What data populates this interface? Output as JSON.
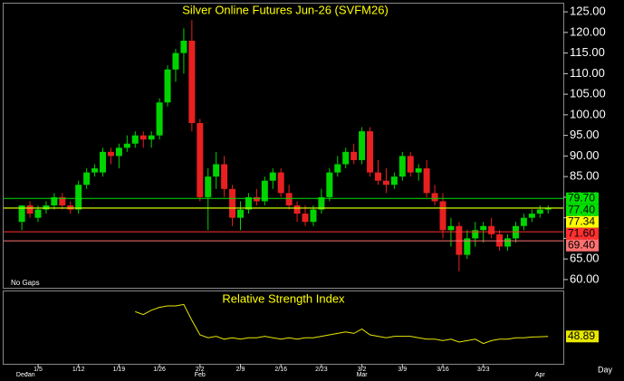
{
  "chart_data": [
    {
      "type": "candlestick",
      "title": "Silver Online Futures Jun-26 (SVFM26)",
      "note": "No Gaps",
      "categories": [
        null,
        null,
        "1/5",
        null,
        null,
        null,
        null,
        "1/12",
        null,
        null,
        null,
        null,
        "1/19",
        null,
        null,
        null,
        null,
        "1/26",
        null,
        null,
        null,
        null,
        "2/2",
        null,
        null,
        null,
        null,
        "2/9",
        null,
        null,
        null,
        null,
        "2/16",
        null,
        null,
        null,
        null,
        "2/23",
        null,
        null,
        null,
        null,
        "3/2",
        null,
        null,
        null,
        null,
        "3/9",
        null,
        null,
        null,
        null,
        "3/16",
        null,
        null,
        null,
        null,
        "3/23",
        null,
        null,
        null,
        null,
        null,
        null,
        null,
        null
      ],
      "months": [
        "Dec",
        "Jan",
        null,
        null,
        null,
        null,
        null,
        null,
        null,
        null,
        null,
        null,
        null,
        null,
        null,
        null,
        null,
        null,
        null,
        null,
        null,
        null,
        "Feb",
        null,
        null,
        null,
        null,
        null,
        null,
        null,
        null,
        null,
        null,
        null,
        null,
        null,
        null,
        null,
        null,
        null,
        null,
        null,
        "Mar",
        null,
        null,
        null,
        null,
        null,
        null,
        null,
        null,
        null,
        null,
        null,
        null,
        null,
        null,
        null,
        null,
        null,
        null,
        null,
        null,
        null,
        "Apr",
        null
      ],
      "x_unit_label": "Day",
      "ohlc": [
        [
          74,
          78,
          72,
          78
        ],
        [
          78,
          79,
          75,
          76
        ],
        [
          75,
          78,
          74,
          77
        ],
        [
          77,
          79,
          76,
          78
        ],
        [
          78,
          81,
          77,
          80
        ],
        [
          80,
          81,
          77,
          78
        ],
        [
          78,
          79,
          76,
          77
        ],
        [
          77,
          84,
          76,
          83
        ],
        [
          83,
          87,
          82,
          86
        ],
        [
          86,
          88,
          85,
          87
        ],
        [
          86,
          92,
          85,
          91
        ],
        [
          91,
          92,
          88,
          90
        ],
        [
          90,
          93,
          87,
          92
        ],
        [
          92,
          95,
          91,
          93
        ],
        [
          93,
          96,
          92,
          95
        ],
        [
          95,
          96,
          92,
          94
        ],
        [
          94,
          96,
          92,
          95
        ],
        [
          95,
          104,
          94,
          103
        ],
        [
          103,
          112,
          102,
          111
        ],
        [
          111,
          116,
          108,
          115
        ],
        [
          115,
          121,
          110,
          118
        ],
        [
          118,
          123,
          96,
          98
        ],
        [
          98,
          99,
          79,
          80
        ],
        [
          80,
          87,
          72,
          85
        ],
        [
          85,
          91,
          82,
          88
        ],
        [
          88,
          90,
          80,
          82
        ],
        [
          82,
          83,
          73,
          75
        ],
        [
          75,
          79,
          72,
          77
        ],
        [
          77,
          81,
          76,
          80
        ],
        [
          80,
          82,
          78,
          79
        ],
        [
          79,
          85,
          78,
          84
        ],
        [
          84,
          87,
          82,
          86
        ],
        [
          86,
          87,
          80,
          81
        ],
        [
          81,
          83,
          77,
          78
        ],
        [
          78,
          79,
          74,
          76
        ],
        [
          76,
          78,
          73,
          74
        ],
        [
          74,
          78,
          73,
          77
        ],
        [
          77,
          82,
          76,
          80
        ],
        [
          80,
          87,
          79,
          86
        ],
        [
          86,
          90,
          85,
          88
        ],
        [
          88,
          92,
          87,
          91
        ],
        [
          91,
          93,
          88,
          89
        ],
        [
          89,
          97,
          88,
          96
        ],
        [
          96,
          97,
          85,
          86
        ],
        [
          86,
          89,
          83,
          84
        ],
        [
          84,
          87,
          81,
          83
        ],
        [
          83,
          86,
          82,
          85
        ],
        [
          85,
          91,
          84,
          90
        ],
        [
          90,
          91,
          85,
          86
        ],
        [
          86,
          88,
          84,
          87
        ],
        [
          87,
          89,
          80,
          81
        ],
        [
          81,
          83,
          78,
          79
        ],
        [
          79,
          81,
          70,
          72
        ],
        [
          72,
          75,
          68,
          73
        ],
        [
          73,
          74,
          62,
          66
        ],
        [
          66,
          72,
          65,
          70
        ],
        [
          70,
          74,
          68,
          72
        ],
        [
          72,
          74,
          69,
          73
        ],
        [
          73,
          75,
          70,
          71
        ],
        [
          71,
          72,
          67,
          68
        ],
        [
          68,
          71,
          67,
          70
        ],
        [
          70,
          74,
          69,
          73
        ],
        [
          73,
          76,
          72,
          75
        ],
        [
          75,
          77,
          74,
          76
        ],
        [
          76,
          78,
          75,
          77
        ],
        [
          77,
          78,
          76,
          77.34
        ]
      ],
      "up_color": "#00d400",
      "down_color": "#e82020",
      "ylim": [
        58,
        127
      ],
      "yticks": [
        {
          "value": 60,
          "label": "60.00"
        },
        {
          "value": 65,
          "label": "65.00"
        },
        {
          "value": 70,
          "label": "70.00"
        },
        {
          "value": 75,
          "label": "75.00"
        },
        {
          "value": 80,
          "label": "80.00"
        },
        {
          "value": 85,
          "label": "85.00"
        },
        {
          "value": 90,
          "label": "90.00"
        },
        {
          "value": 95,
          "label": "95.00"
        },
        {
          "value": 100,
          "label": "100.00"
        },
        {
          "value": 105,
          "label": "105.00"
        },
        {
          "value": 110,
          "label": "110.00"
        },
        {
          "value": 115,
          "label": "115.00"
        },
        {
          "value": 120,
          "label": "120.00"
        },
        {
          "value": 125,
          "label": "125.00"
        }
      ],
      "levels": [
        {
          "value": 79.7,
          "label": "79.70",
          "color": "#00e000"
        },
        {
          "value": 77.4,
          "label": "77.40",
          "color": "#00e000"
        },
        {
          "value": 77.34,
          "color": "#ffff00"
        },
        {
          "value": 71.6,
          "label": "71.60",
          "color": "#ff3030"
        },
        {
          "value": 69.4,
          "label": "69.40",
          "color": "#ff7070"
        }
      ]
    },
    {
      "type": "line",
      "title": "Relative Strength Index",
      "color": "#e8e800",
      "values": [
        null,
        null,
        null,
        null,
        null,
        null,
        null,
        null,
        null,
        null,
        null,
        null,
        null,
        null,
        66,
        64,
        67,
        69,
        70,
        70,
        71,
        60,
        50,
        48,
        49,
        47,
        48,
        47,
        48,
        48,
        49,
        48,
        47,
        48,
        47,
        48,
        48,
        49,
        50,
        51,
        52,
        51,
        54,
        50,
        49,
        48,
        49,
        49,
        49,
        48,
        47,
        47,
        46,
        47,
        45,
        46,
        47,
        44,
        46,
        47,
        47,
        48,
        48,
        48.5,
        48.7,
        48.89
      ],
      "ylim": [
        30,
        80
      ]
    }
  ]
}
